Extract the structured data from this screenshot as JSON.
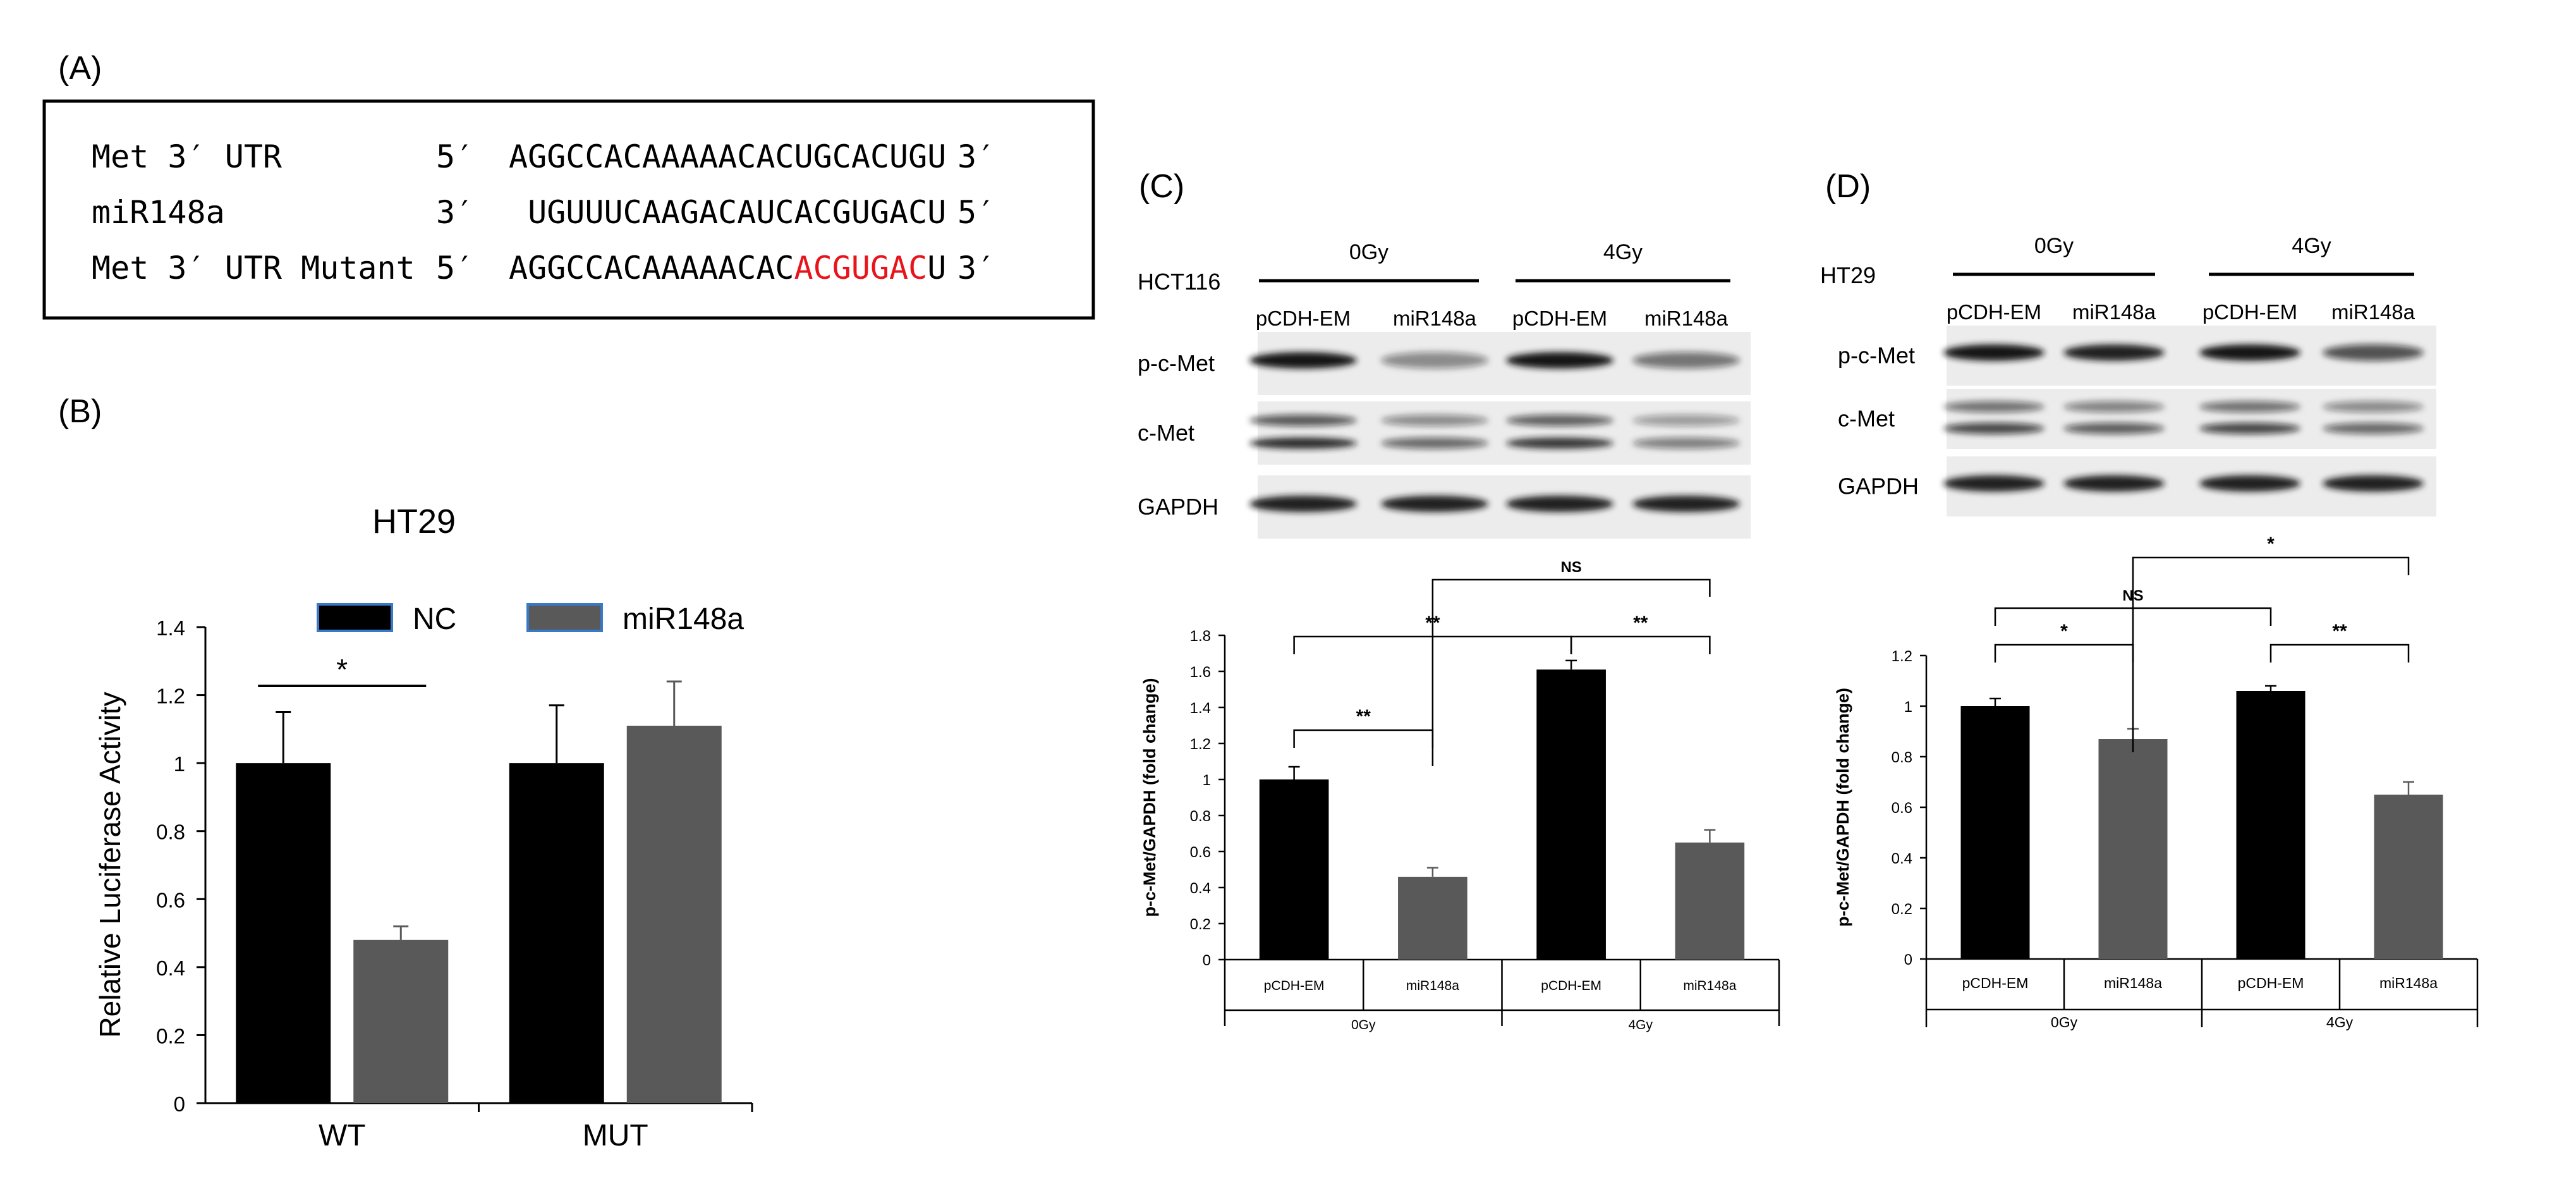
{
  "panels": {
    "a": "(A)",
    "b": "(B)",
    "c": "(C)",
    "d": "(D)"
  },
  "sequences": {
    "rows": [
      {
        "label": "Met 3′ UTR",
        "left": "5′",
        "pre": "AGGCCACAAAAACACUGCACUGU",
        "hl": "",
        "post": "",
        "right": "3′"
      },
      {
        "label": "miR148a",
        "left": "3′",
        "pre": " UGUUUCAAGACAUCACGUGACU",
        "hl": "",
        "post": "",
        "right": "5′"
      },
      {
        "label": "Met 3′ UTR Mutant",
        "left": "5′",
        "pre": "AGGCCACAAAAACAC",
        "hl": "ACGUGAC",
        "post": "U",
        "right": "3′"
      }
    ],
    "highlight_color": "#e8131b"
  },
  "colors": {
    "black": "#000000",
    "gray": "#595959"
  },
  "chart_data": [
    {
      "type": "bar",
      "title": "HT29",
      "ylabel": "Relative Luciferase Activity",
      "xlabel": "",
      "categories": [
        "WT",
        "MUT"
      ],
      "series": [
        {
          "name": "NC",
          "values": [
            1.0,
            1.0
          ],
          "errors": [
            0.15,
            0.17
          ],
          "color": "#000000"
        },
        {
          "name": "miR148a",
          "values": [
            0.48,
            1.11
          ],
          "errors": [
            0.04,
            0.13
          ],
          "color": "#595959"
        }
      ],
      "ylim": [
        0,
        1.4
      ],
      "yticks": [
        "0",
        "0.2",
        "0.4",
        "0.6",
        "0.8",
        "1",
        "1.2",
        "1.4"
      ],
      "legend": "top",
      "grid": false,
      "annotations": [
        {
          "between": "WT NC – WT miR148a",
          "text": "*"
        }
      ]
    },
    {
      "type": "bar",
      "title": "",
      "ylabel": "p-c-Met/GAPDH (fold change)",
      "xlabel": "",
      "cell_line": "HCT116",
      "groups": [
        "0Gy",
        "4Gy"
      ],
      "categories": [
        "pCDH-EM",
        "miR148a",
        "pCDH-EM",
        "miR148a"
      ],
      "values": [
        1.0,
        0.46,
        1.61,
        0.65
      ],
      "errors": [
        0.07,
        0.05,
        0.05,
        0.07
      ],
      "colors": [
        "#000000",
        "#595959",
        "#000000",
        "#595959"
      ],
      "ylim": [
        0,
        1.8
      ],
      "yticks": [
        "0",
        "0.2",
        "0.4",
        "0.6",
        "0.8",
        "1",
        "1.2",
        "1.4",
        "1.6",
        "1.8"
      ],
      "grid": false,
      "blot_rows": [
        "p-c-Met",
        "c-Met",
        "GAPDH"
      ],
      "blot_headers": [
        "0Gy",
        "4Gy"
      ],
      "blot_lanes": [
        "pCDH-EM",
        "miR148a",
        "pCDH-EM",
        "miR148a"
      ],
      "annotations": [
        {
          "between": "0Gy pCDH-EM – 0Gy miR148a",
          "text": "**"
        },
        {
          "between": "0Gy pCDH-EM – 4Gy pCDH-EM",
          "text": "**"
        },
        {
          "between": "4Gy pCDH-EM – 4Gy miR148a",
          "text": "**"
        },
        {
          "between": "0Gy miR148a – 4Gy miR148a",
          "text": "NS"
        }
      ]
    },
    {
      "type": "bar",
      "title": "",
      "ylabel": "p-c-Met/GAPDH (fold change)",
      "xlabel": "",
      "cell_line": "HT29",
      "groups": [
        "0Gy",
        "4Gy"
      ],
      "categories": [
        "pCDH-EM",
        "miR148a",
        "pCDH-EM",
        "miR148a"
      ],
      "values": [
        1.0,
        0.87,
        1.06,
        0.65
      ],
      "errors": [
        0.03,
        0.04,
        0.02,
        0.05
      ],
      "colors": [
        "#000000",
        "#595959",
        "#000000",
        "#595959"
      ],
      "ylim": [
        0,
        1.2
      ],
      "yticks": [
        "0",
        "0.2",
        "0.4",
        "0.6",
        "0.8",
        "1",
        "1.2"
      ],
      "grid": false,
      "blot_rows": [
        "p-c-Met",
        "c-Met",
        "GAPDH"
      ],
      "blot_headers": [
        "0Gy",
        "4Gy"
      ],
      "blot_lanes": [
        "pCDH-EM",
        "miR148a",
        "pCDH-EM",
        "miR148a"
      ],
      "annotations": [
        {
          "between": "0Gy pCDH-EM – 0Gy miR148a",
          "text": "*"
        },
        {
          "between": "0Gy pCDH-EM – 4Gy pCDH-EM",
          "text": "NS"
        },
        {
          "between": "4Gy pCDH-EM – 4Gy miR148a",
          "text": "**"
        },
        {
          "between": "0Gy miR148a – 4Gy miR148a",
          "text": "*"
        }
      ]
    }
  ]
}
